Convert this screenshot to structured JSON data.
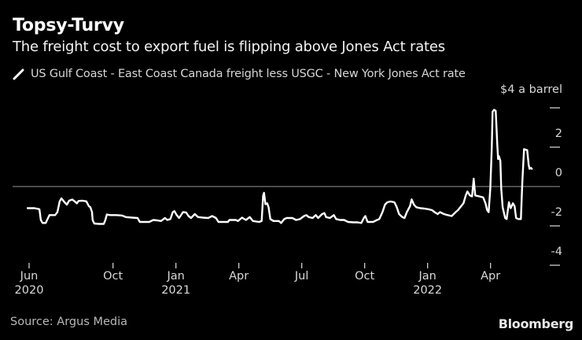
{
  "header": {
    "title": "Topsy-Turvy",
    "subtitle": "The freight cost to export fuel is flipping above Jones Act rates"
  },
  "legend": {
    "series_label": "US Gulf Coast - East Coast Canada freight less USGC - New York Jones Act rate",
    "marker": "line-slash-icon"
  },
  "footer": {
    "source": "Source: Argus Media",
    "brand": "Bloomberg"
  },
  "colors": {
    "background": "#000000",
    "line": "#ffffff",
    "zero_line": "#787878",
    "tick": "#cfcfcf",
    "tick_text": "#d9d9d9",
    "title_text": "#ffffff",
    "source_text": "#b8b8b8"
  },
  "chart_data": {
    "type": "line",
    "title": "Topsy-Turvy",
    "subtitle": "The freight cost to export fuel is flipping above Jones Act rates",
    "xlabel": "",
    "ylabel": "$ a barrel",
    "ylim": [
      -4.6,
      4.4
    ],
    "grid": "zero-line-only",
    "legend_position": "top-left",
    "y_axis": {
      "unit_label": "$4 a barrel",
      "ticks": [
        {
          "v": 4,
          "label": null,
          "dash": true
        },
        {
          "v": 2,
          "label": "2",
          "dash": true
        },
        {
          "v": 0,
          "label": "0",
          "dash": false
        },
        {
          "v": -2,
          "label": "-2",
          "dash": true
        },
        {
          "v": -4,
          "label": "-4",
          "dash": true
        }
      ]
    },
    "x_axis": {
      "unit": "months since Jun 2020",
      "ticks": [
        {
          "t": 0,
          "month": "Jun",
          "year": "2020"
        },
        {
          "t": 4,
          "month": "Oct",
          "year": null
        },
        {
          "t": 7,
          "month": "Jan",
          "year": "2021"
        },
        {
          "t": 10,
          "month": "Apr",
          "year": null
        },
        {
          "t": 13,
          "month": "Jul",
          "year": null
        },
        {
          "t": 16,
          "month": "Oct",
          "year": null
        },
        {
          "t": 19,
          "month": "Jan",
          "year": "2022"
        },
        {
          "t": 22,
          "month": "Apr",
          "year": null
        }
      ]
    },
    "series": [
      {
        "name": "US Gulf Coast - East Coast Canada freight less USGC - New York Jones Act rate",
        "color": "#ffffff",
        "points": [
          [
            -0.07,
            -1.1
          ],
          [
            0.26,
            -1.1
          ],
          [
            0.49,
            -1.15
          ],
          [
            0.56,
            -1.7
          ],
          [
            0.64,
            -1.85
          ],
          [
            0.79,
            -1.85
          ],
          [
            0.86,
            -1.7
          ],
          [
            0.97,
            -1.45
          ],
          [
            1.24,
            -1.45
          ],
          [
            1.35,
            -1.3
          ],
          [
            1.46,
            -0.75
          ],
          [
            1.54,
            -0.6
          ],
          [
            1.69,
            -0.8
          ],
          [
            1.8,
            -0.92
          ],
          [
            1.91,
            -0.72
          ],
          [
            2.06,
            -0.66
          ],
          [
            2.17,
            -0.75
          ],
          [
            2.28,
            -0.85
          ],
          [
            2.36,
            -0.73
          ],
          [
            2.55,
            -0.72
          ],
          [
            2.73,
            -0.75
          ],
          [
            2.85,
            -1.0
          ],
          [
            2.92,
            -1.05
          ],
          [
            3.0,
            -1.3
          ],
          [
            3.03,
            -1.7
          ],
          [
            3.11,
            -1.88
          ],
          [
            3.33,
            -1.9
          ],
          [
            3.56,
            -1.9
          ],
          [
            3.63,
            -1.72
          ],
          [
            3.71,
            -1.42
          ],
          [
            3.86,
            -1.45
          ],
          [
            4.16,
            -1.45
          ],
          [
            4.42,
            -1.47
          ],
          [
            4.61,
            -1.55
          ],
          [
            4.91,
            -1.58
          ],
          [
            5.17,
            -1.6
          ],
          [
            5.28,
            -1.8
          ],
          [
            5.73,
            -1.8
          ],
          [
            5.92,
            -1.7
          ],
          [
            6.1,
            -1.72
          ],
          [
            6.29,
            -1.75
          ],
          [
            6.48,
            -1.6
          ],
          [
            6.59,
            -1.7
          ],
          [
            6.74,
            -1.65
          ],
          [
            6.85,
            -1.3
          ],
          [
            6.93,
            -1.25
          ],
          [
            7.04,
            -1.45
          ],
          [
            7.15,
            -1.6
          ],
          [
            7.34,
            -1.3
          ],
          [
            7.49,
            -1.32
          ],
          [
            7.6,
            -1.5
          ],
          [
            7.72,
            -1.6
          ],
          [
            7.9,
            -1.4
          ],
          [
            8.05,
            -1.55
          ],
          [
            8.28,
            -1.58
          ],
          [
            8.54,
            -1.6
          ],
          [
            8.73,
            -1.5
          ],
          [
            8.91,
            -1.6
          ],
          [
            9.03,
            -1.8
          ],
          [
            9.48,
            -1.8
          ],
          [
            9.55,
            -1.7
          ],
          [
            9.85,
            -1.7
          ],
          [
            9.96,
            -1.75
          ],
          [
            10.15,
            -1.58
          ],
          [
            10.34,
            -1.7
          ],
          [
            10.52,
            -1.55
          ],
          [
            10.67,
            -1.75
          ],
          [
            10.97,
            -1.8
          ],
          [
            11.09,
            -1.75
          ],
          [
            11.16,
            -0.45
          ],
          [
            11.2,
            -0.32
          ],
          [
            11.27,
            -0.9
          ],
          [
            11.35,
            -0.85
          ],
          [
            11.42,
            -1.05
          ],
          [
            11.5,
            -1.65
          ],
          [
            11.65,
            -1.75
          ],
          [
            11.91,
            -1.75
          ],
          [
            12.02,
            -1.85
          ],
          [
            12.17,
            -1.65
          ],
          [
            12.28,
            -1.6
          ],
          [
            12.55,
            -1.6
          ],
          [
            12.73,
            -1.7
          ],
          [
            12.92,
            -1.65
          ],
          [
            13.11,
            -1.5
          ],
          [
            13.22,
            -1.45
          ],
          [
            13.33,
            -1.55
          ],
          [
            13.52,
            -1.6
          ],
          [
            13.67,
            -1.45
          ],
          [
            13.78,
            -1.6
          ],
          [
            13.97,
            -1.4
          ],
          [
            14.08,
            -1.35
          ],
          [
            14.16,
            -1.55
          ],
          [
            14.34,
            -1.6
          ],
          [
            14.53,
            -1.45
          ],
          [
            14.64,
            -1.65
          ],
          [
            14.83,
            -1.7
          ],
          [
            15.02,
            -1.7
          ],
          [
            15.21,
            -1.8
          ],
          [
            15.47,
            -1.82
          ],
          [
            15.66,
            -1.82
          ],
          [
            15.84,
            -1.85
          ],
          [
            15.96,
            -1.6
          ],
          [
            16.03,
            -1.5
          ],
          [
            16.14,
            -1.8
          ],
          [
            16.4,
            -1.8
          ],
          [
            16.59,
            -1.7
          ],
          [
            16.7,
            -1.65
          ],
          [
            16.85,
            -1.3
          ],
          [
            16.97,
            -0.92
          ],
          [
            17.08,
            -0.8
          ],
          [
            17.23,
            -0.76
          ],
          [
            17.42,
            -0.8
          ],
          [
            17.53,
            -1.05
          ],
          [
            17.64,
            -1.4
          ],
          [
            17.79,
            -1.55
          ],
          [
            17.9,
            -1.6
          ],
          [
            18.01,
            -1.3
          ],
          [
            18.16,
            -1.0
          ],
          [
            18.24,
            -0.65
          ],
          [
            18.35,
            -0.92
          ],
          [
            18.46,
            -1.05
          ],
          [
            18.65,
            -1.1
          ],
          [
            18.84,
            -1.12
          ],
          [
            19.03,
            -1.15
          ],
          [
            19.21,
            -1.2
          ],
          [
            19.33,
            -1.3
          ],
          [
            19.48,
            -1.4
          ],
          [
            19.59,
            -1.3
          ],
          [
            19.78,
            -1.4
          ],
          [
            19.96,
            -1.45
          ],
          [
            20.15,
            -1.5
          ],
          [
            20.34,
            -1.3
          ],
          [
            20.45,
            -1.2
          ],
          [
            20.6,
            -1.0
          ],
          [
            20.71,
            -0.85
          ],
          [
            20.82,
            -0.45
          ],
          [
            20.9,
            -0.25
          ],
          [
            21.01,
            -0.45
          ],
          [
            21.12,
            -0.5
          ],
          [
            21.2,
            0.4
          ],
          [
            21.27,
            -0.45
          ],
          [
            21.46,
            -0.5
          ],
          [
            21.65,
            -0.55
          ],
          [
            21.76,
            -0.85
          ],
          [
            21.84,
            -1.2
          ],
          [
            21.91,
            -1.3
          ],
          [
            21.99,
            -0.1
          ],
          [
            22.06,
            2.0
          ],
          [
            22.1,
            3.8
          ],
          [
            22.17,
            3.9
          ],
          [
            22.25,
            3.85
          ],
          [
            22.32,
            2.2
          ],
          [
            22.36,
            1.4
          ],
          [
            22.4,
            1.55
          ],
          [
            22.47,
            1.3
          ],
          [
            22.51,
            -0.1
          ],
          [
            22.58,
            -1.05
          ],
          [
            22.7,
            -1.6
          ],
          [
            22.77,
            -1.65
          ],
          [
            22.88,
            -0.8
          ],
          [
            22.96,
            -1.1
          ],
          [
            23.07,
            -0.85
          ],
          [
            23.15,
            -1.0
          ],
          [
            23.22,
            -1.6
          ],
          [
            23.33,
            -1.65
          ],
          [
            23.45,
            -1.65
          ],
          [
            23.52,
            0.3
          ],
          [
            23.6,
            1.9
          ],
          [
            23.75,
            1.85
          ],
          [
            23.82,
            1.1
          ],
          [
            23.86,
            0.9
          ],
          [
            23.93,
            0.95
          ],
          [
            23.97,
            0.9
          ]
        ]
      }
    ]
  }
}
